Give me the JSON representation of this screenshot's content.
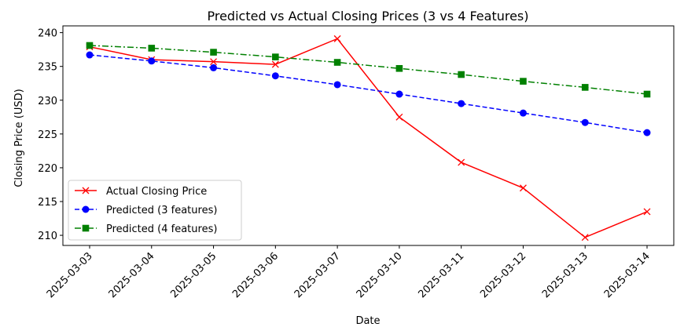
{
  "chart_data": {
    "type": "line",
    "title": "Predicted vs Actual Closing Prices (3 vs 4 Features)",
    "xlabel": "Date",
    "ylabel": "Closing Price (USD)",
    "categories": [
      "2025-03-03",
      "2025-03-04",
      "2025-03-05",
      "2025-03-06",
      "2025-03-07",
      "2025-03-10",
      "2025-03-11",
      "2025-03-12",
      "2025-03-13",
      "2025-03-14"
    ],
    "ylim": [
      208.5,
      241.0
    ],
    "yticks": [
      210,
      215,
      220,
      225,
      230,
      235,
      240
    ],
    "grid": false,
    "legend_position": "lower-left",
    "series": [
      {
        "name": "Actual Closing Price",
        "color": "#ff0000",
        "marker": "x",
        "linestyle": "solid",
        "values": [
          237.9,
          236.0,
          235.7,
          235.3,
          239.1,
          227.5,
          220.8,
          217.0,
          209.7,
          213.5
        ]
      },
      {
        "name": "Predicted (3 features)",
        "color": "#0000ff",
        "marker": "circle",
        "linestyle": "dashed",
        "values": [
          236.7,
          235.8,
          234.8,
          233.6,
          232.3,
          230.9,
          229.5,
          228.1,
          226.7,
          225.2
        ]
      },
      {
        "name": "Predicted (4 features)",
        "color": "#008000",
        "marker": "square",
        "linestyle": "dashdot",
        "values": [
          238.1,
          237.7,
          237.1,
          236.4,
          235.6,
          234.7,
          233.8,
          232.8,
          231.9,
          230.9
        ]
      }
    ]
  }
}
